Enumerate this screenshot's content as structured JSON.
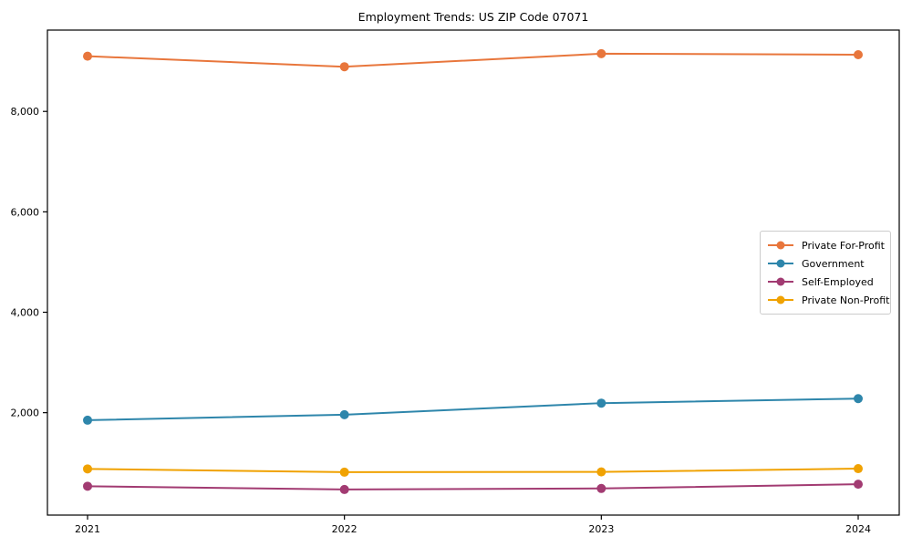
{
  "page": {
    "background_color": "#ffffff"
  },
  "chart_data": {
    "type": "line",
    "title": "Employment Trends: US ZIP Code 07071",
    "categories": [
      "2021",
      "2022",
      "2023",
      "2024"
    ],
    "series": [
      {
        "name": "Private For-Profit",
        "color": "#E8763C",
        "values": [
          9100,
          8890,
          9150,
          9130
        ]
      },
      {
        "name": "Government",
        "color": "#2E86AB",
        "values": [
          1850,
          1960,
          2190,
          2280
        ]
      },
      {
        "name": "Self-Employed",
        "color": "#A23B72",
        "values": [
          535,
          470,
          490,
          575
        ]
      },
      {
        "name": "Private Non-Profit",
        "color": "#F0A202",
        "values": [
          880,
          815,
          820,
          885
        ]
      }
    ],
    "yticks": [
      2000,
      4000,
      6000,
      8000
    ],
    "ylim": [
      -40,
      9620
    ],
    "xlabel": "",
    "ylabel": "",
    "grid": false,
    "legend_position": "right-middle",
    "marker": "circle",
    "axis_color": "#000000"
  }
}
